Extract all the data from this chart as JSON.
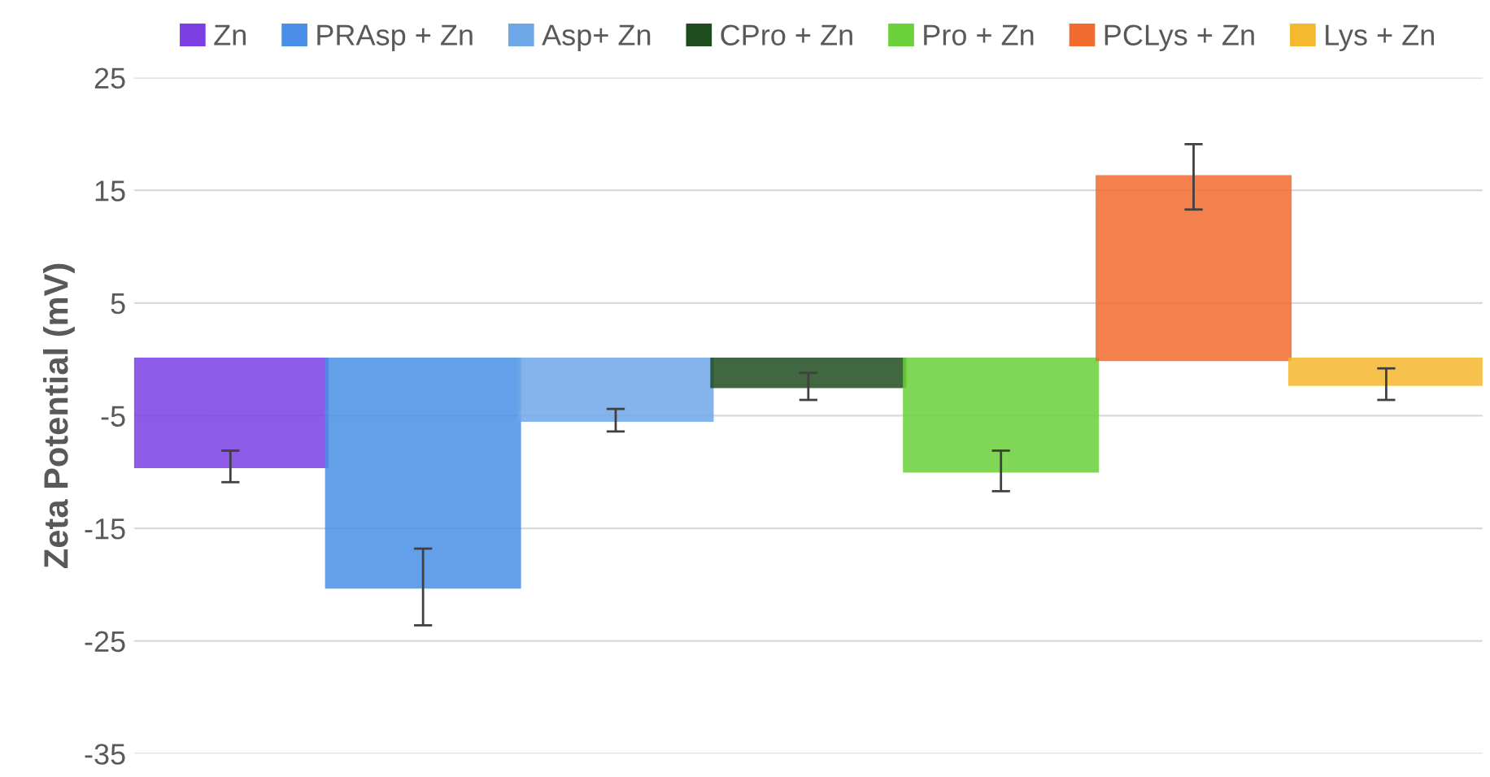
{
  "chart_data": {
    "type": "bar",
    "ylabel": "Zeta Potential (mV)",
    "categories": [
      null,
      null,
      null,
      null,
      null,
      null,
      null
    ],
    "series": [
      {
        "name": "Zn",
        "color": "#7b3fe4",
        "values": [
          -9.5,
          null,
          null,
          null,
          null,
          null,
          null
        ],
        "errors": [
          1.4,
          null,
          null,
          null,
          null,
          null,
          null
        ]
      },
      {
        "name": "PRAsp + Zn",
        "color": "#4a8fe7",
        "values": [
          null,
          -20.2,
          null,
          null,
          null,
          null,
          null
        ],
        "errors": [
          null,
          3.4,
          null,
          null,
          null,
          null,
          null
        ]
      },
      {
        "name": "Asp+ Zn",
        "color": "#6fa8e8",
        "values": [
          null,
          null,
          -5.4,
          null,
          null,
          null,
          null
        ],
        "errors": [
          null,
          null,
          1.0,
          null,
          null,
          null,
          null
        ]
      },
      {
        "name": "CPro + Zn",
        "color": "#1f4d1f",
        "values": [
          null,
          null,
          null,
          -2.4,
          null,
          null,
          null
        ],
        "errors": [
          null,
          null,
          null,
          1.2,
          null,
          null,
          null
        ]
      },
      {
        "name": "Pro + Zn",
        "color": "#6ad13a",
        "values": [
          null,
          null,
          null,
          null,
          -9.9,
          null,
          null
        ],
        "errors": [
          null,
          null,
          null,
          null,
          1.8,
          null,
          null
        ]
      },
      {
        "name": "PCLys + Zn",
        "color": "#f26b2f",
        "values": [
          null,
          null,
          null,
          null,
          null,
          16.2,
          null
        ],
        "errors": [
          null,
          null,
          null,
          null,
          null,
          2.9,
          null
        ]
      },
      {
        "name": "Lys + Zn",
        "color": "#f5b82e",
        "values": [
          null,
          null,
          null,
          null,
          null,
          null,
          -2.2
        ],
        "errors": [
          null,
          null,
          null,
          null,
          null,
          null,
          1.4
        ]
      }
    ],
    "ylim": [
      -35,
      25
    ],
    "yticks": [
      -35,
      -25,
      -15,
      -5,
      5,
      15,
      25
    ],
    "grid": "y",
    "legend": "top",
    "tick_labels": "y"
  }
}
